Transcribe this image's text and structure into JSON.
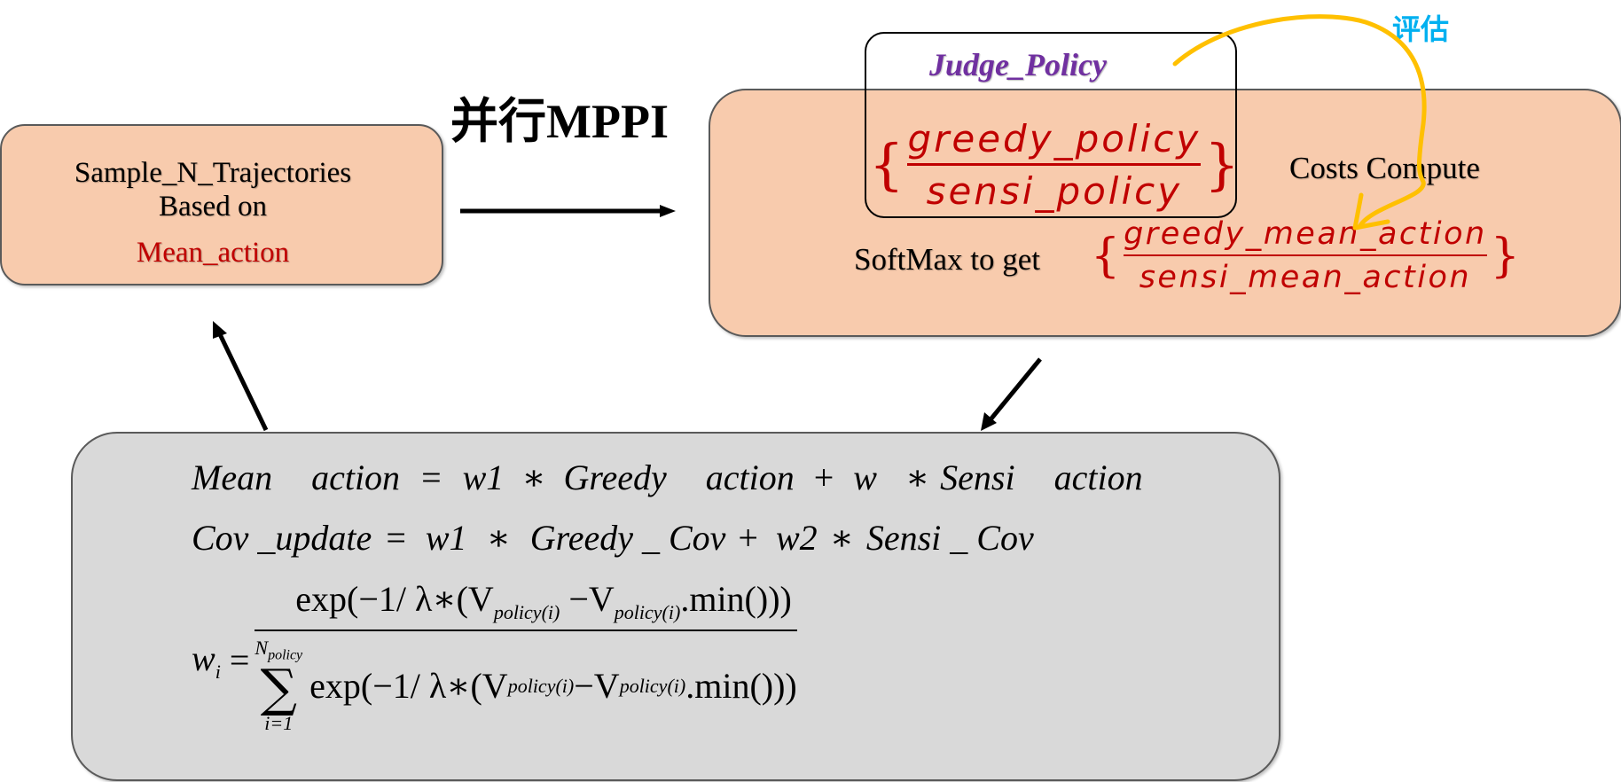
{
  "left_box": {
    "line1": "Sample_N_Trajectories",
    "line2": "Based on",
    "line3": "Mean_action"
  },
  "parallel_title": {
    "cjk": "并行",
    "latin": "MPPI"
  },
  "right_box": {
    "judge_policy": "Judge_Policy",
    "policy_numerator": "greedy_policy",
    "policy_denominator": "sensi_policy",
    "costs_compute": "Costs Compute",
    "softmax_label": "SoftMax to get",
    "action_numerator": "greedy_mean_action",
    "action_denominator": "sensi_mean_action"
  },
  "annotation": {
    "eval_label": "评估"
  },
  "equations": {
    "line1": {
      "lhs_a": "Mean",
      "lhs_b": "action",
      "eq": "=",
      "w1": "w1",
      "op1": "∗",
      "t1a": "Greedy",
      "t1b": "action",
      "plus": "+",
      "w": "w",
      "op2": "∗",
      "t2a": "Sensi",
      "t2b": "action"
    },
    "line2": {
      "lhs": "Cov _update",
      "eq": "=",
      "w1": "w1",
      "op1": "∗",
      "t1": "Greedy _ Cov",
      "plus": "+",
      "w2": "w2",
      "op2": "∗",
      "t2": "Sensi _ Cov"
    },
    "line3": {
      "lhs": "w",
      "lhs_sub": "i",
      "eq": "=",
      "num_a": "exp(−1/ λ∗(V",
      "num_sub1": "policy(i)",
      "num_b": " −V",
      "num_sub2": "policy(i)",
      "num_c": ".min()))",
      "sum_top": "N",
      "sum_top_sub": "policy",
      "sum_symbol": "∑",
      "sum_bottom": "i=1",
      "den_a": "exp(−1/ λ∗(V",
      "den_sub1": "policy(i)",
      "den_b": " −V",
      "den_sub2": "policy(i)",
      "den_c": ".min()))"
    }
  },
  "colors": {
    "peach": "#f8cbad",
    "gray": "#d9d9d9",
    "red": "#c00000",
    "purple": "#7030a0",
    "eval_cyan": "#00b0f0",
    "annotation_orange": "#ffc000"
  }
}
